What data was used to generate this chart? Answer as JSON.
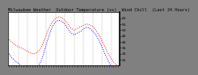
{
  "title": "Milwaukee Weather  Outdoor Temperature (vs)  Wind Chill  (Last 24 Hours)",
  "bg_color": "#808080",
  "plot_bg_color": "#ffffff",
  "grid_color": "#888888",
  "temp_color": "#ff0000",
  "windchill_color": "#0000ee",
  "ylim": [
    20,
    65
  ],
  "yticks": [
    25,
    30,
    35,
    40,
    45,
    50,
    55,
    60
  ],
  "temp_values": [
    42,
    40,
    38,
    37,
    36,
    35,
    34,
    33,
    32,
    31,
    30,
    30,
    31,
    33,
    36,
    41,
    46,
    51,
    55,
    58,
    60,
    61,
    61,
    60,
    58,
    56,
    53,
    51,
    50,
    51,
    52,
    53,
    54,
    55,
    55,
    54,
    53,
    51,
    48,
    45,
    41,
    37,
    33,
    29,
    26,
    23,
    21,
    20
  ],
  "windchill_values": [
    30,
    27,
    25,
    23,
    22,
    20,
    19,
    18,
    17,
    16,
    15,
    16,
    18,
    21,
    25,
    31,
    38,
    44,
    50,
    54,
    57,
    58,
    58,
    57,
    55,
    52,
    49,
    47,
    46,
    47,
    48,
    49,
    51,
    52,
    52,
    51,
    49,
    47,
    44,
    40,
    36,
    31,
    27,
    23,
    19,
    16,
    14,
    13
  ],
  "x_grid_positions": [
    0,
    4,
    8,
    12,
    16,
    20,
    24,
    28,
    32,
    36,
    40,
    44
  ],
  "title_fontsize": 3.8,
  "tick_fontsize": 3.2,
  "line_width": 0.7,
  "marker_size": 1.2
}
